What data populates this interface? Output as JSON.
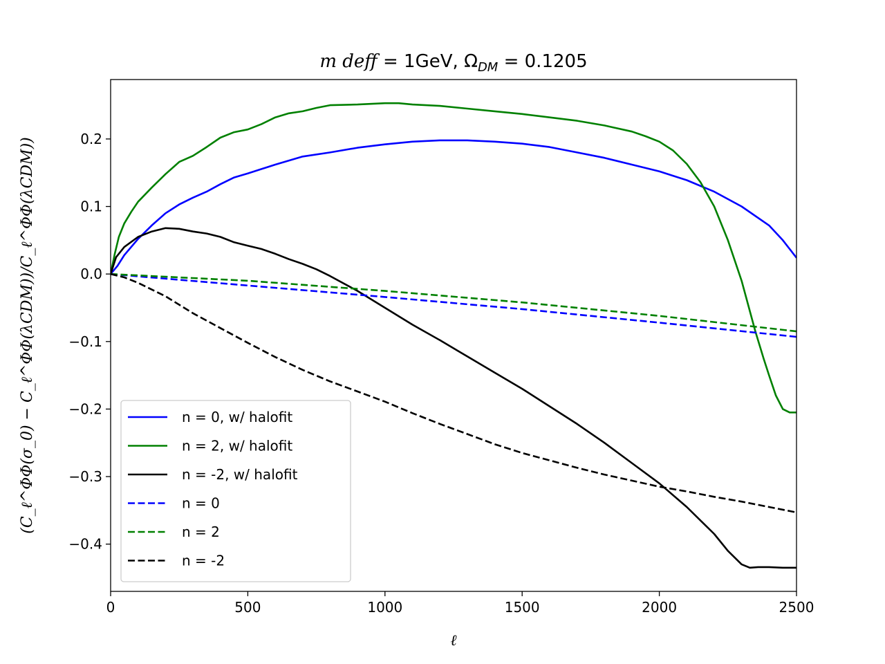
{
  "chart_data": {
    "type": "line",
    "title": "m deff = 1GeV, Ω_DM = 0.1205",
    "title_parts": {
      "lhs": "m deff",
      "eq": " = 1GeV, ",
      "omega": "Ω",
      "sub": "DM",
      "rhs": " = 0.1205"
    },
    "xlabel": "ℓ",
    "ylabel": "(C_ℓ^ΦΦ(σ_0) − C_ℓ^ΦΦ(λCDM))/C_ℓ^ΦΦ(λCDM))",
    "xlim": [
      0,
      2500
    ],
    "ylim": [
      -0.47,
      0.288
    ],
    "xticks": [
      0,
      500,
      1000,
      1500,
      2000,
      2500
    ],
    "xtick_labels": [
      "0",
      "500",
      "1000",
      "1500",
      "2000",
      "2500"
    ],
    "yticks": [
      -0.4,
      -0.3,
      -0.2,
      -0.1,
      0.0,
      0.1,
      0.2
    ],
    "ytick_labels": [
      "−0.4",
      "−0.3",
      "−0.2",
      "−0.1",
      "0.0",
      "0.1",
      "0.2"
    ],
    "grid": false,
    "legend_position": "lower-left",
    "series": [
      {
        "name": "n = 0, w/ halofit",
        "color": "#0000ff",
        "dash": "solid",
        "x": [
          0,
          25,
          50,
          100,
          150,
          200,
          250,
          300,
          350,
          400,
          450,
          500,
          600,
          700,
          800,
          900,
          1000,
          1100,
          1200,
          1300,
          1400,
          1500,
          1600,
          1700,
          1800,
          1900,
          2000,
          2100,
          2200,
          2300,
          2400,
          2450,
          2500
        ],
        "y": [
          0.0,
          0.012,
          0.028,
          0.052,
          0.072,
          0.09,
          0.103,
          0.113,
          0.122,
          0.133,
          0.143,
          0.149,
          0.162,
          0.174,
          0.18,
          0.187,
          0.192,
          0.196,
          0.198,
          0.198,
          0.196,
          0.193,
          0.188,
          0.18,
          0.172,
          0.162,
          0.152,
          0.139,
          0.122,
          0.1,
          0.072,
          0.05,
          0.024
        ]
      },
      {
        "name": "n = 2, w/ halofit",
        "color": "#008000",
        "dash": "solid",
        "x": [
          0,
          15,
          30,
          50,
          75,
          100,
          150,
          200,
          250,
          300,
          350,
          400,
          450,
          500,
          550,
          600,
          650,
          700,
          750,
          800,
          900,
          1000,
          1050,
          1100,
          1200,
          1300,
          1400,
          1500,
          1600,
          1700,
          1800,
          1900,
          1950,
          2000,
          2050,
          2100,
          2150,
          2200,
          2250,
          2300,
          2350,
          2380,
          2400,
          2425,
          2450,
          2475,
          2500
        ],
        "y": [
          0.0,
          0.03,
          0.055,
          0.075,
          0.092,
          0.107,
          0.128,
          0.148,
          0.166,
          0.175,
          0.188,
          0.202,
          0.21,
          0.214,
          0.222,
          0.232,
          0.238,
          0.241,
          0.246,
          0.25,
          0.251,
          0.253,
          0.253,
          0.251,
          0.249,
          0.245,
          0.241,
          0.237,
          0.232,
          0.227,
          0.22,
          0.211,
          0.204,
          0.196,
          0.183,
          0.163,
          0.136,
          0.1,
          0.05,
          -0.01,
          -0.085,
          -0.125,
          -0.15,
          -0.18,
          -0.2,
          -0.205,
          -0.205
        ]
      },
      {
        "name": "n = -2, w/ halofit",
        "color": "#000000",
        "dash": "solid",
        "x": [
          0,
          20,
          50,
          100,
          150,
          200,
          250,
          300,
          350,
          400,
          450,
          500,
          550,
          600,
          650,
          700,
          750,
          800,
          900,
          1000,
          1100,
          1200,
          1300,
          1400,
          1500,
          1600,
          1700,
          1800,
          1900,
          2000,
          2100,
          2200,
          2250,
          2300,
          2330,
          2360,
          2400,
          2450,
          2500
        ],
        "y": [
          0.0,
          0.025,
          0.04,
          0.055,
          0.063,
          0.068,
          0.067,
          0.063,
          0.06,
          0.055,
          0.047,
          0.042,
          0.037,
          0.03,
          0.022,
          0.015,
          0.007,
          -0.003,
          -0.025,
          -0.05,
          -0.075,
          -0.098,
          -0.122,
          -0.146,
          -0.17,
          -0.196,
          -0.222,
          -0.25,
          -0.28,
          -0.31,
          -0.345,
          -0.385,
          -0.41,
          -0.43,
          -0.435,
          -0.434,
          -0.434,
          -0.435,
          -0.435
        ]
      },
      {
        "name": "n = 0",
        "color": "#0000ff",
        "dash": "dashed",
        "x": [
          0,
          500,
          1000,
          1500,
          2000,
          2500
        ],
        "y": [
          0.0,
          -0.017,
          -0.034,
          -0.052,
          -0.072,
          -0.093
        ]
      },
      {
        "name": "n = 2",
        "color": "#008000",
        "dash": "dashed",
        "x": [
          0,
          500,
          1000,
          1500,
          2000,
          2500
        ],
        "y": [
          0.0,
          -0.01,
          -0.025,
          -0.042,
          -0.062,
          -0.085
        ]
      },
      {
        "name": "n = -2",
        "color": "#000000",
        "dash": "dashed",
        "x": [
          0,
          50,
          100,
          200,
          300,
          400,
          500,
          600,
          700,
          800,
          900,
          1000,
          1100,
          1200,
          1300,
          1400,
          1500,
          1600,
          1700,
          1800,
          1900,
          2000,
          2100,
          2200,
          2300,
          2400,
          2500
        ],
        "y": [
          0.0,
          -0.005,
          -0.013,
          -0.033,
          -0.058,
          -0.08,
          -0.102,
          -0.123,
          -0.142,
          -0.159,
          -0.174,
          -0.189,
          -0.206,
          -0.222,
          -0.237,
          -0.252,
          -0.265,
          -0.276,
          -0.287,
          -0.297,
          -0.306,
          -0.315,
          -0.322,
          -0.33,
          -0.337,
          -0.345,
          -0.353
        ]
      }
    ]
  }
}
